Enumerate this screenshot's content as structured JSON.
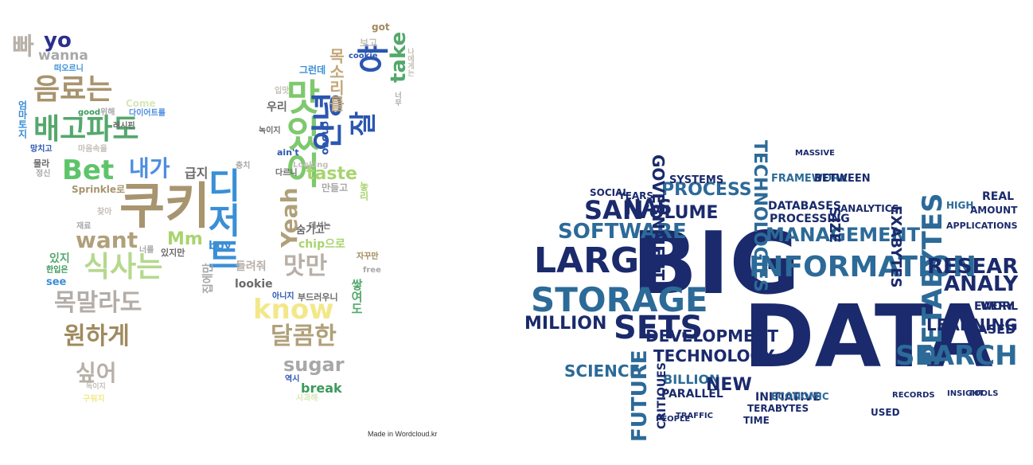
{
  "left_cloud": {
    "credit": "Made in Wordcloud.kr",
    "words": [
      {
        "t": "쿠키",
        "c": "#a8946e"
      },
      {
        "t": "디저트",
        "c": "#3a8fd6"
      },
      {
        "t": "맛있어",
        "c": "#7ec86e"
      },
      {
        "t": "안녕",
        "c": "#2b56b0"
      },
      {
        "t": "야",
        "c": "#2b56b0"
      },
      {
        "t": "배고파도",
        "c": "#54a86c"
      },
      {
        "t": "음료는",
        "c": "#a8946e"
      },
      {
        "t": "Bet",
        "c": "#5ec46a"
      },
      {
        "t": "yo",
        "c": "#2b2f8c"
      },
      {
        "t": "wanna",
        "c": "#a8a8a8"
      },
      {
        "t": "빠",
        "c": "#b8b0a8"
      },
      {
        "t": "내가",
        "c": "#4d8ee0"
      },
      {
        "t": "want",
        "c": "#b0a07a"
      },
      {
        "t": "Mm",
        "c": "#a8d46e"
      },
      {
        "t": "식사는",
        "c": "#b5d88e"
      },
      {
        "t": "목말라도",
        "c": "#b3ada8"
      },
      {
        "t": "원하게",
        "c": "#a08a5e"
      },
      {
        "t": "싶어",
        "c": "#b8b0a8"
      },
      {
        "t": "Yeah",
        "c": "#b0a07a"
      },
      {
        "t": "take",
        "c": "#54a86c"
      },
      {
        "t": "목소리를",
        "c": "#c4a87a"
      },
      {
        "t": "잘",
        "c": "#2b56b0"
      },
      {
        "t": "taste",
        "c": "#a8d46e"
      },
      {
        "t": "know",
        "c": "#f2e88a"
      },
      {
        "t": "맛만",
        "c": "#b8b0a8"
      },
      {
        "t": "달콤한",
        "c": "#b0a07a"
      },
      {
        "t": "sugar",
        "c": "#a8a8a8"
      },
      {
        "t": "break",
        "c": "#3c9a5c"
      },
      {
        "t": "chip으로",
        "c": "#a8d46e"
      },
      {
        "t": "숨기고",
        "c": "#6a6a6a"
      },
      {
        "t": "lookie",
        "c": "#6a6a6a"
      },
      {
        "t": "boy",
        "c": "#3a8fd6"
      },
      {
        "t": "있지",
        "c": "#54a86c"
      },
      {
        "t": "see",
        "c": "#3a8fd6"
      },
      {
        "t": "Sprinkle로",
        "c": "#a8946e"
      },
      {
        "t": "got",
        "c": "#a08a5e"
      },
      {
        "t": "보고",
        "c": "#c4c0b8"
      },
      {
        "t": "cookie",
        "c": "#2b56b0"
      },
      {
        "t": "그런데",
        "c": "#3a8fd6"
      },
      {
        "t": "우리",
        "c": "#6a6a6a"
      },
      {
        "t": "choco",
        "c": "#2b56b0"
      },
      {
        "t": "만들고",
        "c": "#a8a8a8"
      },
      {
        "t": "급지",
        "c": "#6a6a6a"
      },
      {
        "t": "Come",
        "c": "#d8e8b8"
      },
      {
        "t": "good",
        "c": "#3c9a5c"
      },
      {
        "t": "위해",
        "c": "#a8a8a8"
      },
      {
        "t": "다이어트를",
        "c": "#4d8ee0"
      },
      {
        "t": "레시핀",
        "c": "#6a6a6a"
      },
      {
        "t": "마음속을",
        "c": "#c4c0b8"
      },
      {
        "t": "엄마토지",
        "c": "#3a8fd6"
      },
      {
        "t": "망치고",
        "c": "#2b56b0"
      },
      {
        "t": "물라",
        "c": "#6a6a6a"
      },
      {
        "t": "정신",
        "c": "#a8a8a8"
      },
      {
        "t": "떠오르니",
        "c": "#3a8fd6"
      },
      {
        "t": "찾아",
        "c": "#c4c0b8"
      },
      {
        "t": "재료",
        "c": "#a8a8a8"
      },
      {
        "t": "너를",
        "c": "#a8a8a8"
      },
      {
        "t": "있지만",
        "c": "#6a6a6a"
      },
      {
        "t": "한입은",
        "c": "#3c9a5c"
      },
      {
        "t": "구워지",
        "c": "#f2e88a"
      },
      {
        "t": "독이지",
        "c": "#c4c0b8"
      },
      {
        "t": "역시",
        "c": "#2b56b0"
      },
      {
        "t": "사과해",
        "c": "#d8e8b8"
      },
      {
        "t": "부드러우니",
        "c": "#6a6a6a"
      },
      {
        "t": "아니지",
        "c": "#2b56b0"
      },
      {
        "t": "들려줘",
        "c": "#b8b0a8"
      },
      {
        "t": "free",
        "c": "#a8a8a8"
      },
      {
        "t": "자꾸만",
        "c": "#a08a5e"
      },
      {
        "t": "데셔는",
        "c": "#6a6a6a"
      },
      {
        "t": "ain't",
        "c": "#2b56b0"
      },
      {
        "t": "Looking",
        "c": "#c4c0b8"
      },
      {
        "t": "다르니",
        "c": "#6a6a6a"
      },
      {
        "t": "녹이지",
        "c": "#6a6a6a"
      },
      {
        "t": "입맛",
        "c": "#c4c0b8"
      },
      {
        "t": "충치",
        "c": "#a8a8a8"
      },
      {
        "t": "쌓여도",
        "c": "#54a86c"
      },
      {
        "t": "집에만",
        "c": "#a8a8a8"
      },
      {
        "t": "너무",
        "c": "#a8a8a8"
      },
      {
        "t": "나에게는",
        "c": "#c4c0b8"
      },
      {
        "t": "놓리",
        "c": "#a8d46e"
      }
    ]
  },
  "right_cloud": {
    "words": [
      {
        "t": "BIG",
        "c": "#1a2a6c"
      },
      {
        "t": "DATA",
        "c": "#1a2a6c"
      },
      {
        "t": "INFORMATION",
        "c": "#2c6a98"
      },
      {
        "t": "LARGE",
        "c": "#1a2a6c"
      },
      {
        "t": "STORAGE",
        "c": "#2c6a98"
      },
      {
        "t": "SETS",
        "c": "#1a2a6c"
      },
      {
        "t": "MILLION",
        "c": "#1a2a6c"
      },
      {
        "t": "SOFTWARE",
        "c": "#2c6a98"
      },
      {
        "t": "SAN",
        "c": "#1a2a6c"
      },
      {
        "t": "NAS",
        "c": "#1a2a6c"
      },
      {
        "t": "VOLUME",
        "c": "#1a2a6c"
      },
      {
        "t": "PROCESS",
        "c": "#2c6a98"
      },
      {
        "t": "GOVERNMENT",
        "c": "#1a2a6c"
      },
      {
        "t": "TECHNOLOGIES",
        "c": "#2c6a98"
      },
      {
        "t": "MANAGEMENT",
        "c": "#2c6a98"
      },
      {
        "t": "PETABYTES",
        "c": "#2c6a98"
      },
      {
        "t": "EXABYTES",
        "c": "#1a2a6c"
      },
      {
        "t": "SIZE",
        "c": "#1a2a6c"
      },
      {
        "t": "ANALY",
        "c": "#1a2a6c"
      },
      {
        "t": "RESEAR",
        "c": "#1a2a6c"
      },
      {
        "t": "SEARCH",
        "c": "#2c6a98"
      },
      {
        "t": "LEARNING",
        "c": "#1a2a6c"
      },
      {
        "t": "DEVELOPMENT",
        "c": "#1a2a6c"
      },
      {
        "t": "TECHNOLOGY",
        "c": "#1a2a6c"
      },
      {
        "t": "SCIENCE",
        "c": "#2c6a98"
      },
      {
        "t": "FUTURE",
        "c": "#2c6a98"
      },
      {
        "t": "BILLION",
        "c": "#2c6a98"
      },
      {
        "t": "NEW",
        "c": "#1a2a6c"
      },
      {
        "t": "PARALLEL",
        "c": "#1a2a6c"
      },
      {
        "t": "INITIATIVE",
        "c": "#1a2a6c"
      },
      {
        "t": "BASED",
        "c": "#1a2a6c"
      },
      {
        "t": "PROCESSING",
        "c": "#1a2a6c"
      },
      {
        "t": "DATABASES",
        "c": "#1a2a6c"
      },
      {
        "t": "ANALYTICS",
        "c": "#1a2a6c"
      },
      {
        "t": "FRAMEWORK",
        "c": "#2c6a98"
      },
      {
        "t": "BETWEEN",
        "c": "#1a2a6c"
      },
      {
        "t": "SOCIAL",
        "c": "#1a2a6c"
      },
      {
        "t": "YEARS",
        "c": "#1a2a6c"
      },
      {
        "t": "SYSTEMS",
        "c": "#1a2a6c"
      },
      {
        "t": "EVERY",
        "c": "#1a2a6c"
      },
      {
        "t": "WORL",
        "c": "#1a2a6c"
      },
      {
        "t": "CRITIQUES",
        "c": "#1a2a6c"
      },
      {
        "t": "TERABYTES",
        "c": "#1a2a6c"
      },
      {
        "t": "TIME",
        "c": "#1a2a6c"
      },
      {
        "t": "USED",
        "c": "#1a2a6c"
      },
      {
        "t": "REAL",
        "c": "#1a2a6c"
      },
      {
        "t": "HIGH",
        "c": "#2c6a98"
      },
      {
        "t": "AMOUNT",
        "c": "#1a2a6c"
      },
      {
        "t": "APPLICATIONS",
        "c": "#1a2a6c"
      },
      {
        "t": "ECONOMIC",
        "c": "#2c6a98"
      },
      {
        "t": "MASSIVE",
        "c": "#1a2a6c"
      },
      {
        "t": "TRAFFIC",
        "c": "#1a2a6c"
      },
      {
        "t": "PEOPLE",
        "c": "#1a2a6c"
      },
      {
        "t": "RECORDS",
        "c": "#1a2a6c"
      },
      {
        "t": "INSIGHT",
        "c": "#1a2a6c"
      },
      {
        "t": "TOOLS",
        "c": "#1a2a6c"
      }
    ]
  }
}
